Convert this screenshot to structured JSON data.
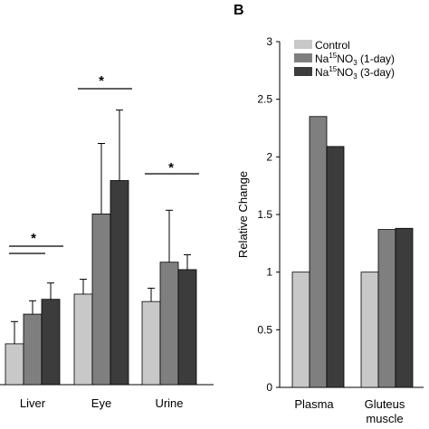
{
  "chart_data": [
    {
      "type": "bar",
      "categories": [
        "Liver",
        "Eye",
        "Urine"
      ],
      "series": [
        {
          "name": "Control",
          "values": [
            0.55,
            1.22,
            1.12
          ],
          "errors": [
            0.3,
            0.2,
            0.18
          ]
        },
        {
          "name": "Na15NO3 (1-day)",
          "values": [
            0.95,
            2.3,
            1.65
          ],
          "errors": [
            0.18,
            0.95,
            0.7
          ]
        },
        {
          "name": "Na15NO3 (3-day)",
          "values": [
            1.15,
            2.75,
            1.55
          ],
          "errors": [
            0.22,
            0.95,
            0.2
          ]
        }
      ],
      "significance": [
        "*",
        "*",
        "*"
      ],
      "ylim": [
        0,
        4.2
      ]
    },
    {
      "type": "bar",
      "panel_label": "B",
      "categories": [
        "Plasma",
        "Gluteus muscle"
      ],
      "category_lines": [
        [
          "Plasma"
        ],
        [
          "Gluteus",
          "muscle"
        ]
      ],
      "series": [
        {
          "name": "Control",
          "values": [
            1.0,
            1.0
          ]
        },
        {
          "name": "Na15NO3 (1-day)",
          "values": [
            2.35,
            1.37
          ]
        },
        {
          "name": "Na15NO3 (3-day)",
          "values": [
            2.09,
            1.38
          ]
        }
      ],
      "ylabel": "Relative Change",
      "ylim": [
        0,
        3
      ],
      "yticks": [
        "0",
        "0.5",
        "1",
        "1.5",
        "2",
        "2.5",
        "3"
      ],
      "legend": {
        "position": "top-left",
        "entries": [
          {
            "pre": "Control",
            "sup": "",
            "mid": "",
            "sub": "",
            "post": ""
          },
          {
            "pre": "Na",
            "sup": "15",
            "mid": "NO",
            "sub": "3",
            "post": " (1-day)"
          },
          {
            "pre": "Na",
            "sup": "15",
            "mid": "NO",
            "sub": "3",
            "post": " (3-day)"
          }
        ]
      }
    }
  ],
  "colors": {
    "control": "#c8c8c8",
    "day1": "#7f7f7f",
    "day3": "#3c3c3c",
    "stroke": "#000000"
  }
}
